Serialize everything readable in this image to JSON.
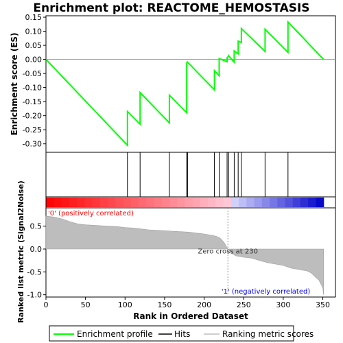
{
  "chart_data": {
    "type": "line",
    "title": "Enrichment plot: REACTOME_HEMOSTASIS",
    "xlabel": "Rank in Ordered Dataset",
    "ylabel_top": "Enrichment score (ES)",
    "ylabel_bottom": "Ranked list metric (Signal2Noise)",
    "xlim": [
      0,
      366
    ],
    "x_ticks": [
      0,
      50,
      100,
      150,
      200,
      250,
      300,
      350
    ],
    "es_ylim": [
      -0.33,
      0.155
    ],
    "es_yticks": [
      0.15,
      0.1,
      0.05,
      0.0,
      -0.05,
      -0.1,
      -0.15,
      -0.2,
      -0.25,
      -0.3
    ],
    "es_tick_labels": [
      "0.15",
      "0.10",
      "0.05",
      "0.00",
      "-0.05",
      "-0.10",
      "-0.15",
      "-0.20",
      "-0.25",
      "-0.30"
    ],
    "metric_ylim": [
      -1.05,
      0.9
    ],
    "metric_yticks": [
      0.5,
      0.0,
      -0.5,
      -1.0
    ],
    "metric_tick_labels": [
      "0.5",
      "0.0",
      "-0.5",
      "-1.0"
    ],
    "series": [
      {
        "name": "Enrichment profile",
        "color": "#00ff00",
        "x": [
          0,
          103,
          103,
          119,
          119,
          156,
          156,
          178,
          178,
          179,
          179,
          213,
          213,
          219,
          219,
          229,
          229,
          231,
          231,
          238,
          238,
          243,
          243,
          247,
          247,
          277,
          277,
          306,
          306,
          351
        ],
        "y": [
          0.0,
          -0.305,
          -0.185,
          -0.23,
          -0.118,
          -0.225,
          -0.127,
          -0.19,
          -0.012,
          -0.011,
          -0.01,
          -0.108,
          -0.04,
          -0.058,
          0.003,
          -0.008,
          0.005,
          0.012,
          0.013,
          -0.01,
          0.03,
          0.02,
          0.065,
          0.06,
          0.11,
          0.028,
          0.107,
          0.025,
          0.133,
          0.0
        ]
      }
    ],
    "hits": [
      103,
      119,
      156,
      178,
      179,
      213,
      219,
      229,
      231,
      238,
      243,
      247,
      277,
      306
    ],
    "metric_profile": {
      "x": [
        0,
        10,
        20,
        30,
        40,
        50,
        60,
        70,
        80,
        90,
        100,
        110,
        120,
        130,
        140,
        150,
        160,
        170,
        180,
        190,
        200,
        210,
        215,
        220,
        225,
        230,
        235,
        240,
        250,
        260,
        270,
        280,
        290,
        300,
        310,
        320,
        330,
        335,
        340,
        345,
        350,
        351
      ],
      "y": [
        0.72,
        0.7,
        0.66,
        0.6,
        0.55,
        0.53,
        0.52,
        0.51,
        0.5,
        0.49,
        0.47,
        0.46,
        0.44,
        0.42,
        0.41,
        0.4,
        0.39,
        0.38,
        0.37,
        0.35,
        0.33,
        0.3,
        0.28,
        0.24,
        0.15,
        0.0,
        -0.1,
        -0.15,
        -0.18,
        -0.2,
        -0.25,
        -0.3,
        -0.33,
        -0.36,
        -0.42,
        -0.45,
        -0.48,
        -0.52,
        -0.6,
        -0.68,
        -0.85,
        -1.0
      ]
    },
    "zero_cross_label": "Zero cross at 230",
    "positive_label": "'0' (positively correlated)",
    "negative_label": "'1' (negatively correlated)",
    "legend": [
      "Enrichment profile",
      "Hits",
      "Ranking metric scores"
    ],
    "colors": {
      "es_line": "#00ff00",
      "hit": "#000000",
      "metric_fill": "#bdbdbd",
      "positive_text": "#ff0000",
      "negative_text": "#0000ff"
    }
  }
}
